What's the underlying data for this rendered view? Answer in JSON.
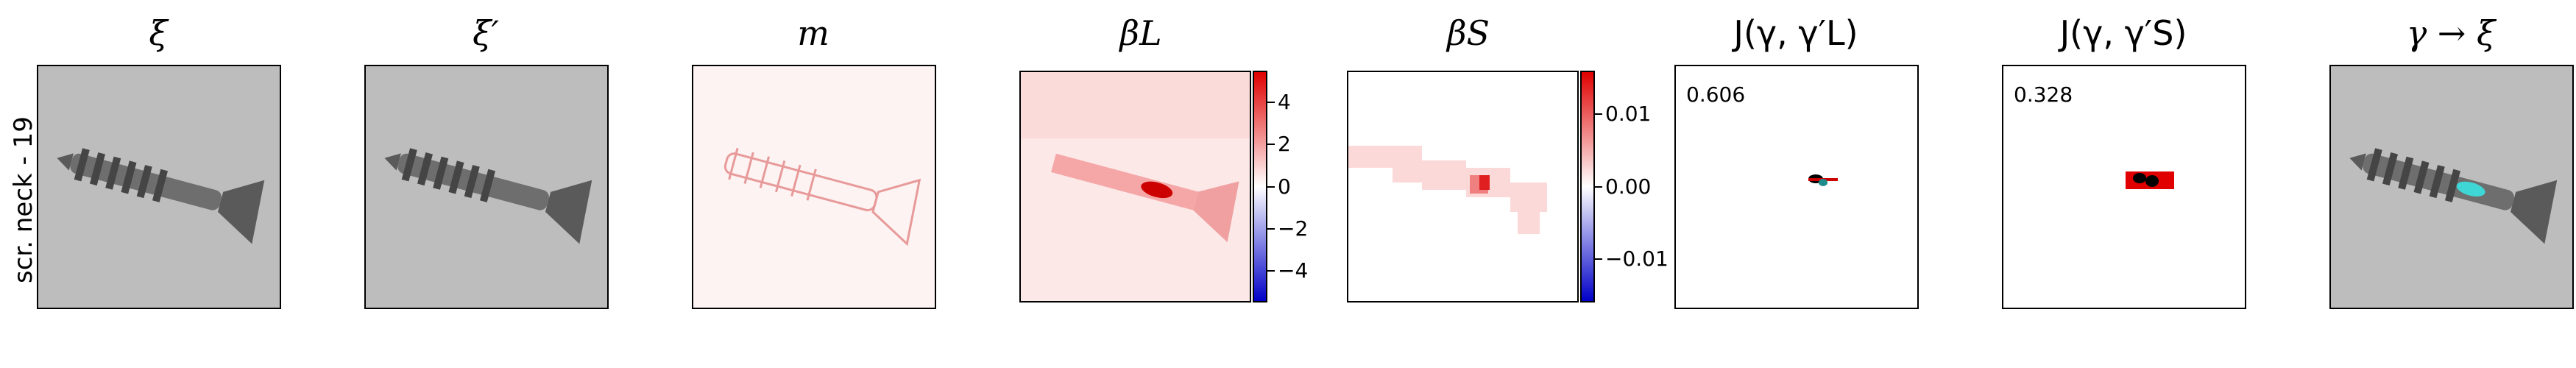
{
  "row_label": "scr. neck - 19",
  "panels": [
    {
      "title": "ξ",
      "icon": "screw-image"
    },
    {
      "title": "ξ′",
      "icon": "screw-image"
    },
    {
      "title": "m",
      "icon": "mask-map"
    },
    {
      "title": "βL",
      "icon": "heatmap"
    },
    {
      "title": "βS",
      "icon": "heatmap"
    },
    {
      "title": "J(γ, γ′L)",
      "score": "0.606",
      "icon": "blob-map"
    },
    {
      "title": "J(γ, γ′S)",
      "score": "0.328",
      "icon": "blob-map"
    },
    {
      "title": "γ → ξ",
      "icon": "screw-image"
    }
  ],
  "colorbar_L": {
    "ticks": [
      "4",
      "2",
      "0",
      "−2",
      "−4"
    ],
    "values": [
      4,
      2,
      0,
      -2,
      -4
    ],
    "range": [
      -5.5,
      5.5
    ]
  },
  "colorbar_S": {
    "ticks": [
      "0.01",
      "0.00",
      "−0.01"
    ],
    "values": [
      0.01,
      0.0,
      -0.01
    ],
    "range": [
      -0.016,
      0.016
    ]
  },
  "colors": {
    "positive": "#d7191c",
    "negative": "#1010d0",
    "highlight": "#3fd6d6"
  }
}
